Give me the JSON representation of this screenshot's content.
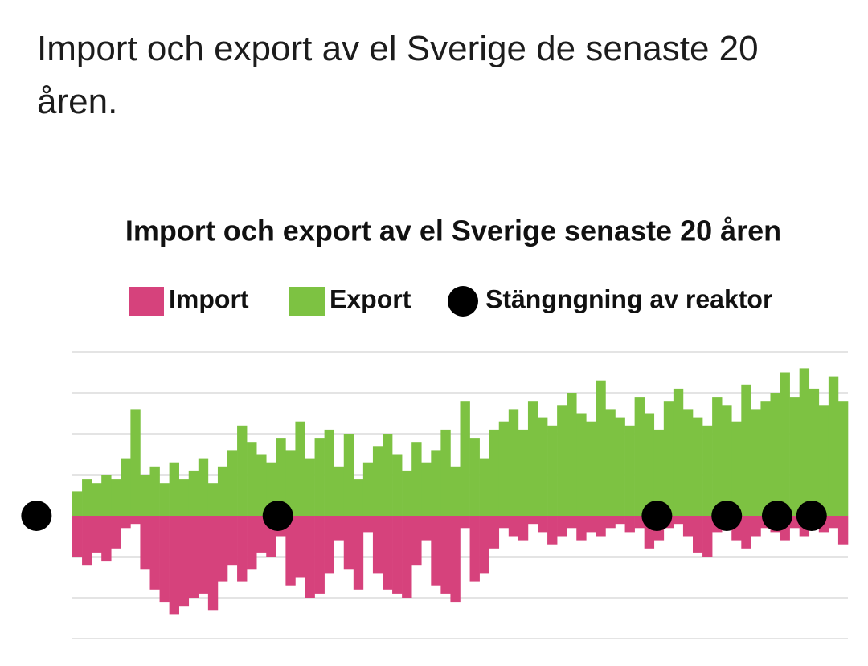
{
  "post_title": "Import och export av el Sverige de senaste 20 åren.",
  "chart_data": {
    "type": "bar",
    "title": "Import och export av el Sverige senaste 20 åren",
    "xlim": [
      0,
      80
    ],
    "ylim": [
      -3,
      4
    ],
    "yticks": [
      -3,
      -2,
      -1,
      0,
      1,
      2,
      3,
      4
    ],
    "grid": true,
    "series": [
      {
        "name": "Import",
        "color": "#d6427c",
        "values": [
          -1.0,
          -1.2,
          -0.9,
          -1.1,
          -0.8,
          -0.3,
          -0.2,
          -1.3,
          -1.8,
          -2.1,
          -2.4,
          -2.2,
          -2.0,
          -1.9,
          -2.3,
          -1.6,
          -1.2,
          -1.6,
          -1.3,
          -0.9,
          -1.0,
          -0.5,
          -1.7,
          -1.5,
          -2.0,
          -1.9,
          -1.4,
          -0.6,
          -1.3,
          -1.8,
          -0.4,
          -1.4,
          -1.8,
          -1.9,
          -2.0,
          -1.2,
          -0.6,
          -1.7,
          -1.9,
          -2.1,
          -0.3,
          -1.6,
          -1.4,
          -0.8,
          -0.3,
          -0.5,
          -0.6,
          -0.2,
          -0.4,
          -0.7,
          -0.5,
          -0.3,
          -0.6,
          -0.4,
          -0.5,
          -0.3,
          -0.2,
          -0.4,
          -0.3,
          -0.8,
          -0.6,
          -0.3,
          -0.2,
          -0.5,
          -0.9,
          -1.0,
          -0.4,
          -0.3,
          -0.6,
          -0.8,
          -0.5,
          -0.3,
          -0.4,
          -0.6,
          -0.3,
          -0.5,
          -0.2,
          -0.4,
          -0.3,
          -0.7
        ]
      },
      {
        "name": "Export",
        "color": "#7dc242",
        "values": [
          0.6,
          0.9,
          0.8,
          1.0,
          0.9,
          1.4,
          2.6,
          1.0,
          1.2,
          0.8,
          1.3,
          0.9,
          1.1,
          1.4,
          0.8,
          1.2,
          1.6,
          2.2,
          1.8,
          1.5,
          1.3,
          1.9,
          1.6,
          2.3,
          1.4,
          1.9,
          2.1,
          1.2,
          2.0,
          0.9,
          1.3,
          1.7,
          2.0,
          1.5,
          1.1,
          1.8,
          1.3,
          1.6,
          2.1,
          1.2,
          2.8,
          1.9,
          1.4,
          2.1,
          2.3,
          2.6,
          2.1,
          2.8,
          2.4,
          2.2,
          2.7,
          3.0,
          2.5,
          2.3,
          3.3,
          2.6,
          2.4,
          2.2,
          2.9,
          2.5,
          2.1,
          2.8,
          3.1,
          2.6,
          2.4,
          2.2,
          2.9,
          2.7,
          2.3,
          3.2,
          2.6,
          2.8,
          3.0,
          3.5,
          2.9,
          3.6,
          3.1,
          2.7,
          3.4,
          2.8
        ]
      }
    ],
    "markers": {
      "name": "Stängngning av reaktor",
      "color": "#000000",
      "x": [
        -3.7,
        21.2,
        60.3,
        67.5,
        72.7,
        76.25
      ]
    }
  }
}
